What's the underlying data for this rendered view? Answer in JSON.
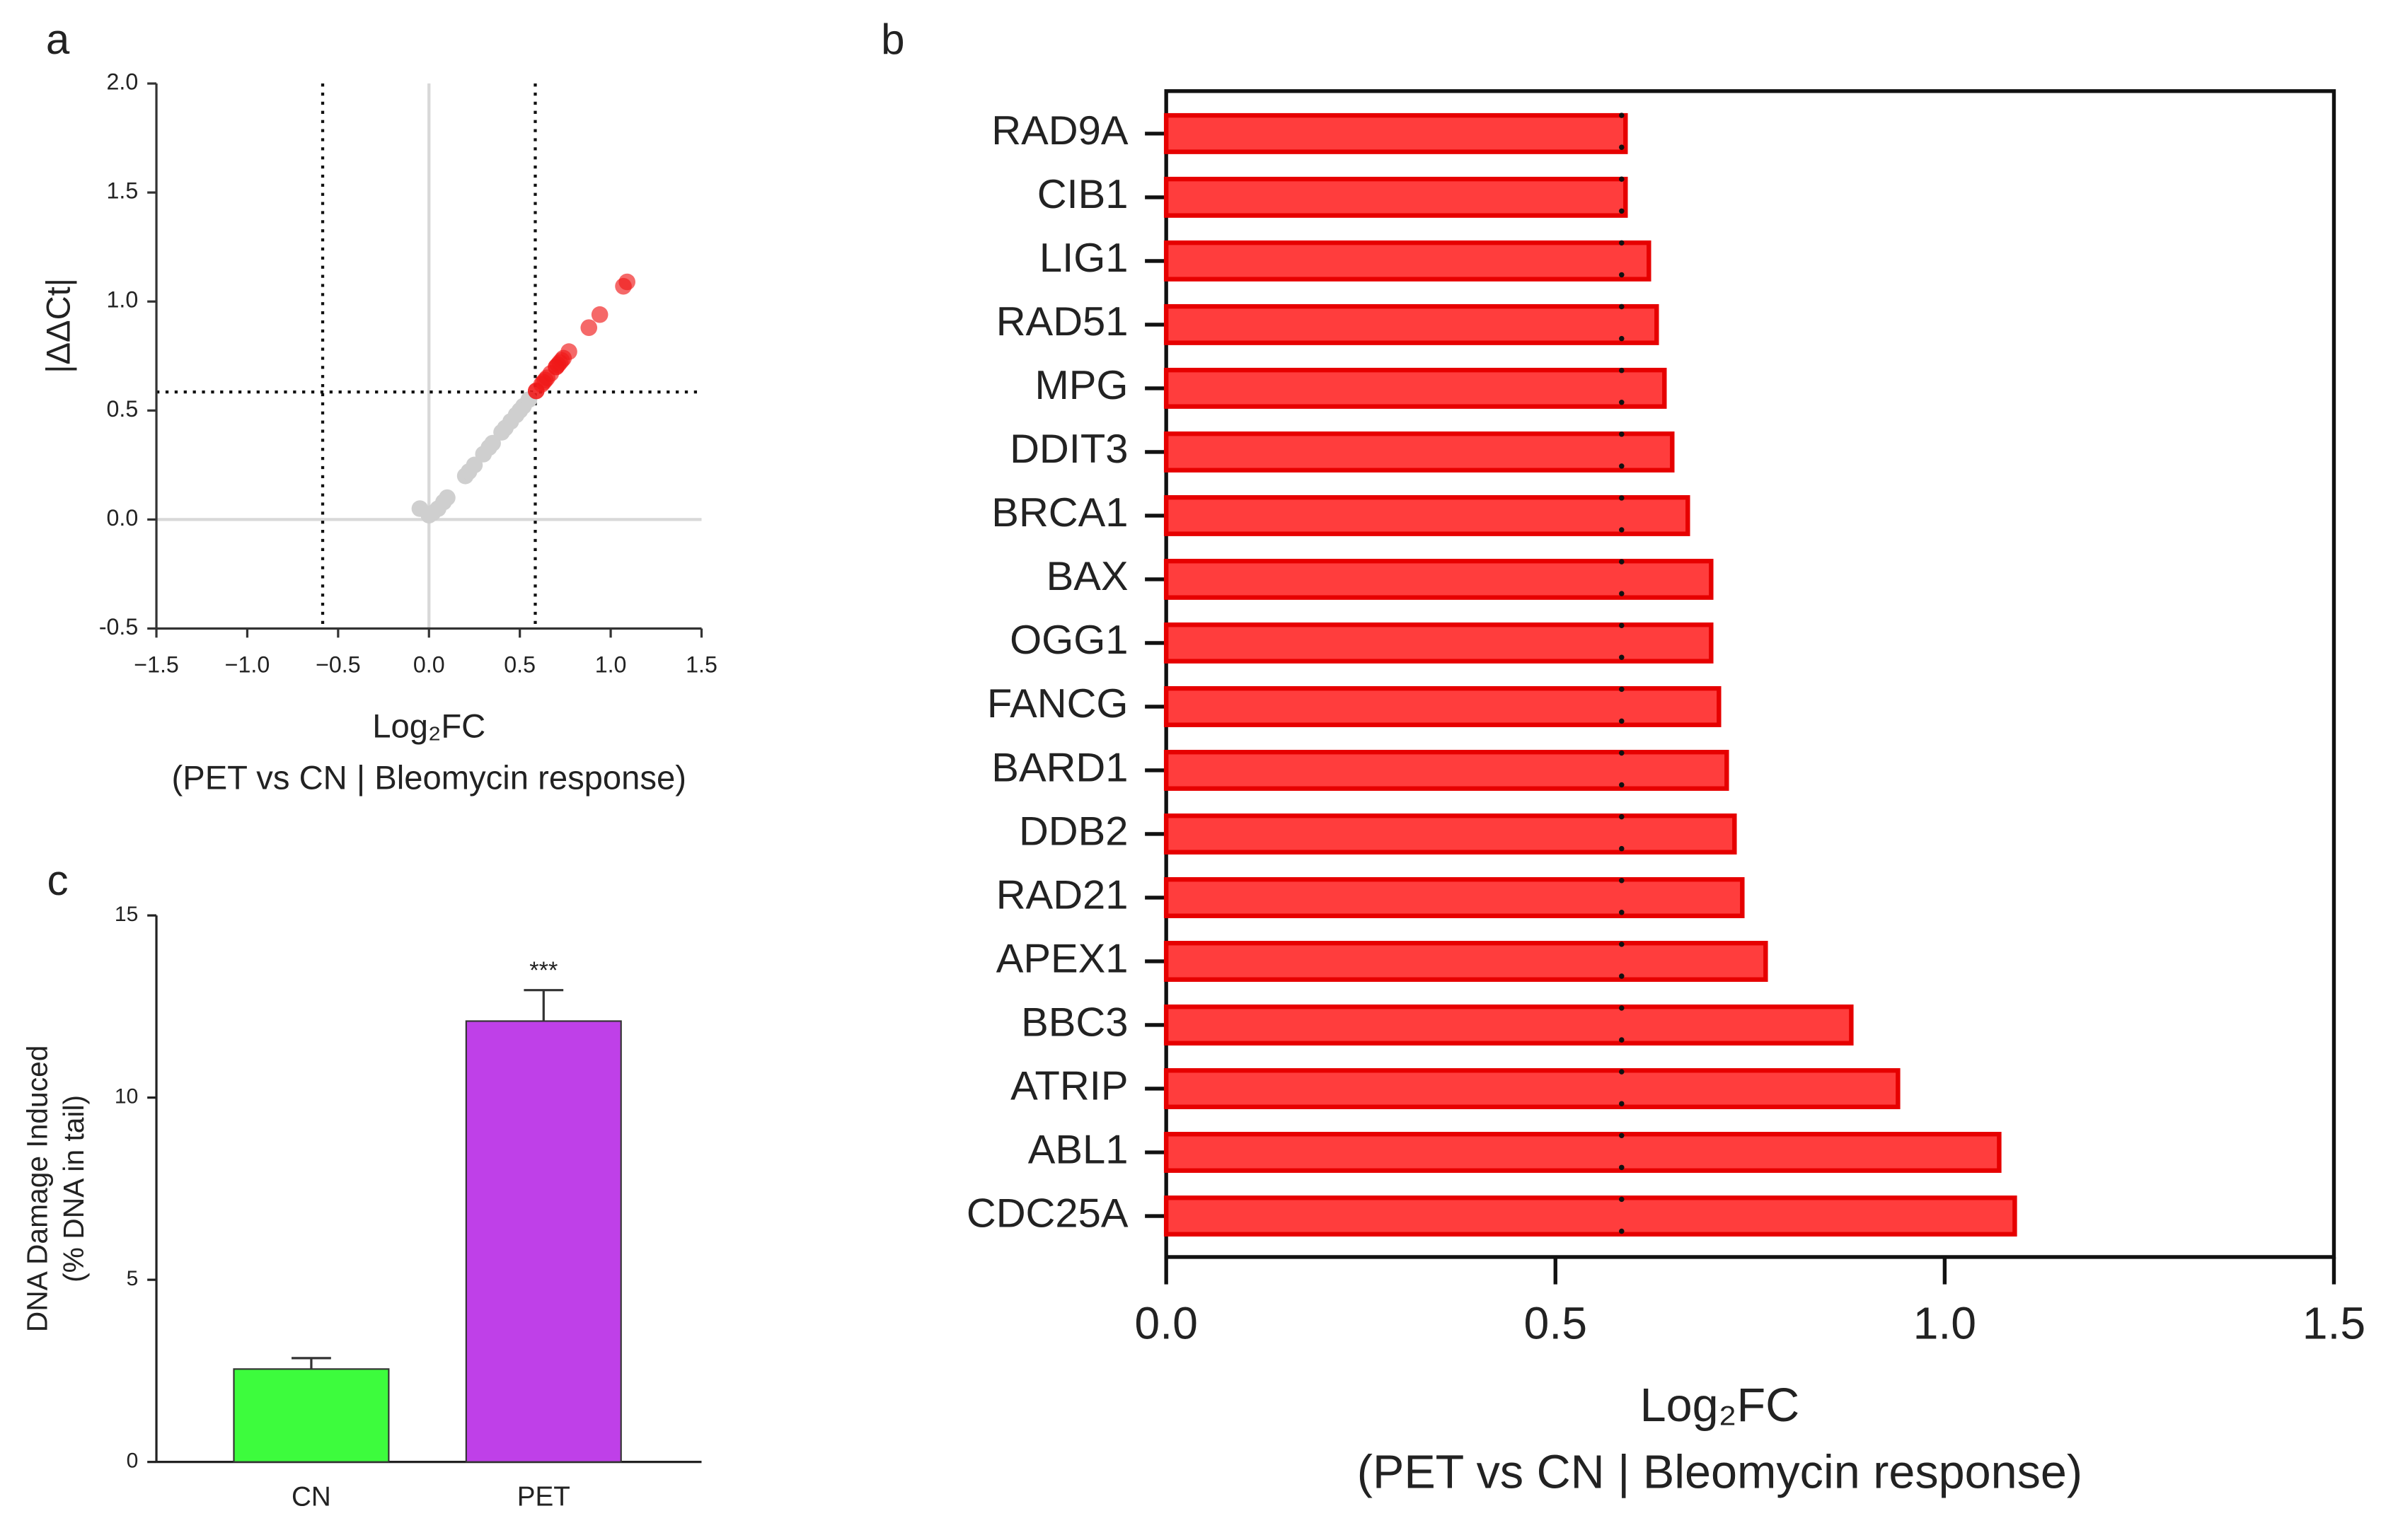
{
  "chart_data": [
    {
      "type": "scatter",
      "panel": "a",
      "xlabel": "Log₂FC",
      "xlabel_sub": "(PET vs CN | Bleomycin response)",
      "ylabel": "|ΔΔCt|",
      "xlim": [
        -1.5,
        1.5
      ],
      "xticks": [
        {
          "value": -1.5,
          "label": "−1.5"
        },
        {
          "value": -1.0,
          "label": "−1.0"
        },
        {
          "value": -0.5,
          "label": "−0.5"
        },
        {
          "value": 0,
          "label": "0.0"
        },
        0.5,
        {
          "value": 1.0,
          "label": "1.0"
        },
        1.5
      ],
      "ylim": [
        -0.5,
        2.0
      ],
      "yticks": [
        -0.5,
        {
          "value": 0,
          "label": "0.0"
        },
        0.5,
        {
          "value": 1.0,
          "label": "1.0"
        },
        1.5,
        {
          "value": 2.0,
          "label": "2.0"
        }
      ],
      "thresholds": {
        "x": [
          -0.585,
          0.585
        ],
        "y": 0.585
      },
      "series": [
        {
          "color": "#cfcfcf",
          "x": [
            -0.05,
            0.0,
            0.02,
            0.05,
            0.08,
            0.1,
            0.2,
            0.22,
            0.25,
            0.3,
            0.33,
            0.35,
            0.4,
            0.42,
            0.45,
            0.48,
            0.5,
            0.52,
            0.55
          ],
          "values": [
            0.05,
            0.02,
            0.03,
            0.05,
            0.08,
            0.1,
            0.2,
            0.22,
            0.25,
            0.3,
            0.33,
            0.35,
            0.4,
            0.42,
            0.45,
            0.48,
            0.5,
            0.52,
            0.55
          ]
        },
        {
          "color": "#f01818",
          "x": [
            0.59,
            0.59,
            0.62,
            0.63,
            0.64,
            0.65,
            0.67,
            0.7,
            0.7,
            0.71,
            0.72,
            0.73,
            0.74,
            0.77,
            0.88,
            0.94,
            1.07,
            1.09
          ],
          "values": [
            0.59,
            0.59,
            0.62,
            0.63,
            0.64,
            0.65,
            0.67,
            0.7,
            0.7,
            0.71,
            0.72,
            0.73,
            0.74,
            0.77,
            0.88,
            0.94,
            1.07,
            1.09
          ]
        }
      ]
    },
    {
      "type": "hbar",
      "panel": "b",
      "xlabel": "Log₂FC",
      "xlabel_sub": "(PET vs CN | Bleomycin response)",
      "categories": [
        "RAD9A",
        "CIB1",
        "LIG1",
        "RAD51",
        "MPG",
        "DDIT3",
        "BRCA1",
        "BAX",
        "OGG1",
        "FANCG",
        "BARD1",
        "DDB2",
        "RAD21",
        "APEX1",
        "BBC3",
        "ATRIP",
        "ABL1",
        "CDC25A"
      ],
      "values": [
        0.59,
        0.59,
        0.62,
        0.63,
        0.64,
        0.65,
        0.67,
        0.7,
        0.7,
        0.71,
        0.72,
        0.73,
        0.74,
        0.77,
        0.88,
        0.94,
        1.07,
        1.09
      ],
      "color": "#ff3d3d",
      "edge_color": "#e60000",
      "xlim": [
        0,
        1.5
      ],
      "xticks": [
        {
          "value": 0,
          "label": "0.0"
        },
        0.5,
        {
          "value": 1.0,
          "label": "1.0"
        },
        1.5
      ],
      "threshold": 0.585
    },
    {
      "type": "bar",
      "panel": "c",
      "ylabel": "DNA Damage Induced",
      "ylabel_sub": "(% DNA in tail)",
      "categories": [
        "CN",
        "PET"
      ],
      "values": [
        2.55,
        12.1
      ],
      "errors": [
        0.3,
        0.85
      ],
      "colors": [
        "#3dfc3d",
        "#bf40e8"
      ],
      "bar_labels": [
        null,
        "***"
      ],
      "ylim": [
        0,
        15
      ],
      "yticks": [
        0,
        5,
        10,
        15
      ]
    }
  ]
}
